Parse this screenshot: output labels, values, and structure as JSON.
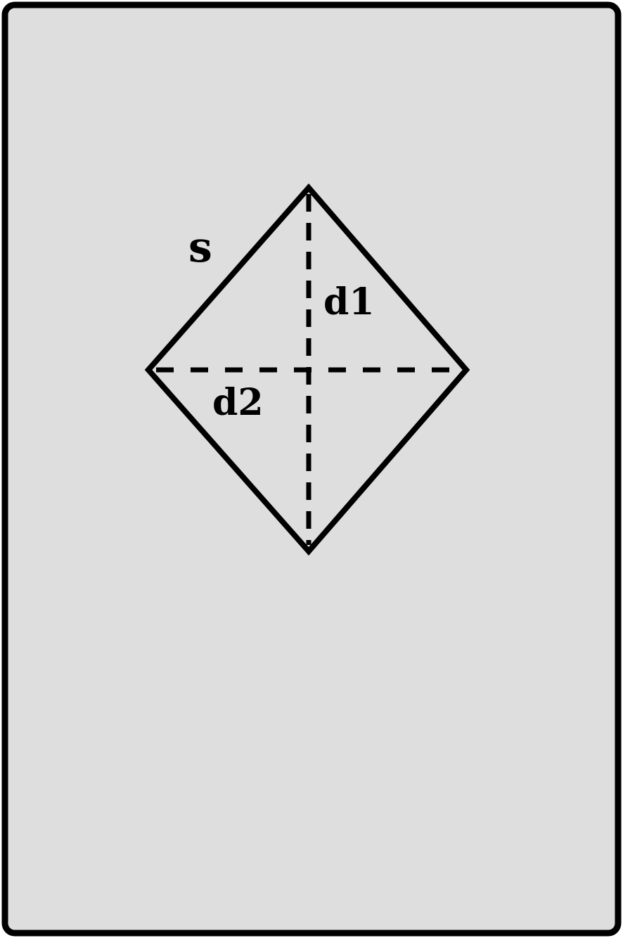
{
  "diagram": {
    "shape": "rhombus",
    "labels": {
      "side": "s",
      "diagonal_vertical": "d1",
      "diagonal_horizontal": "d2"
    },
    "colors": {
      "background": "#dedede",
      "stroke": "#000000"
    }
  }
}
